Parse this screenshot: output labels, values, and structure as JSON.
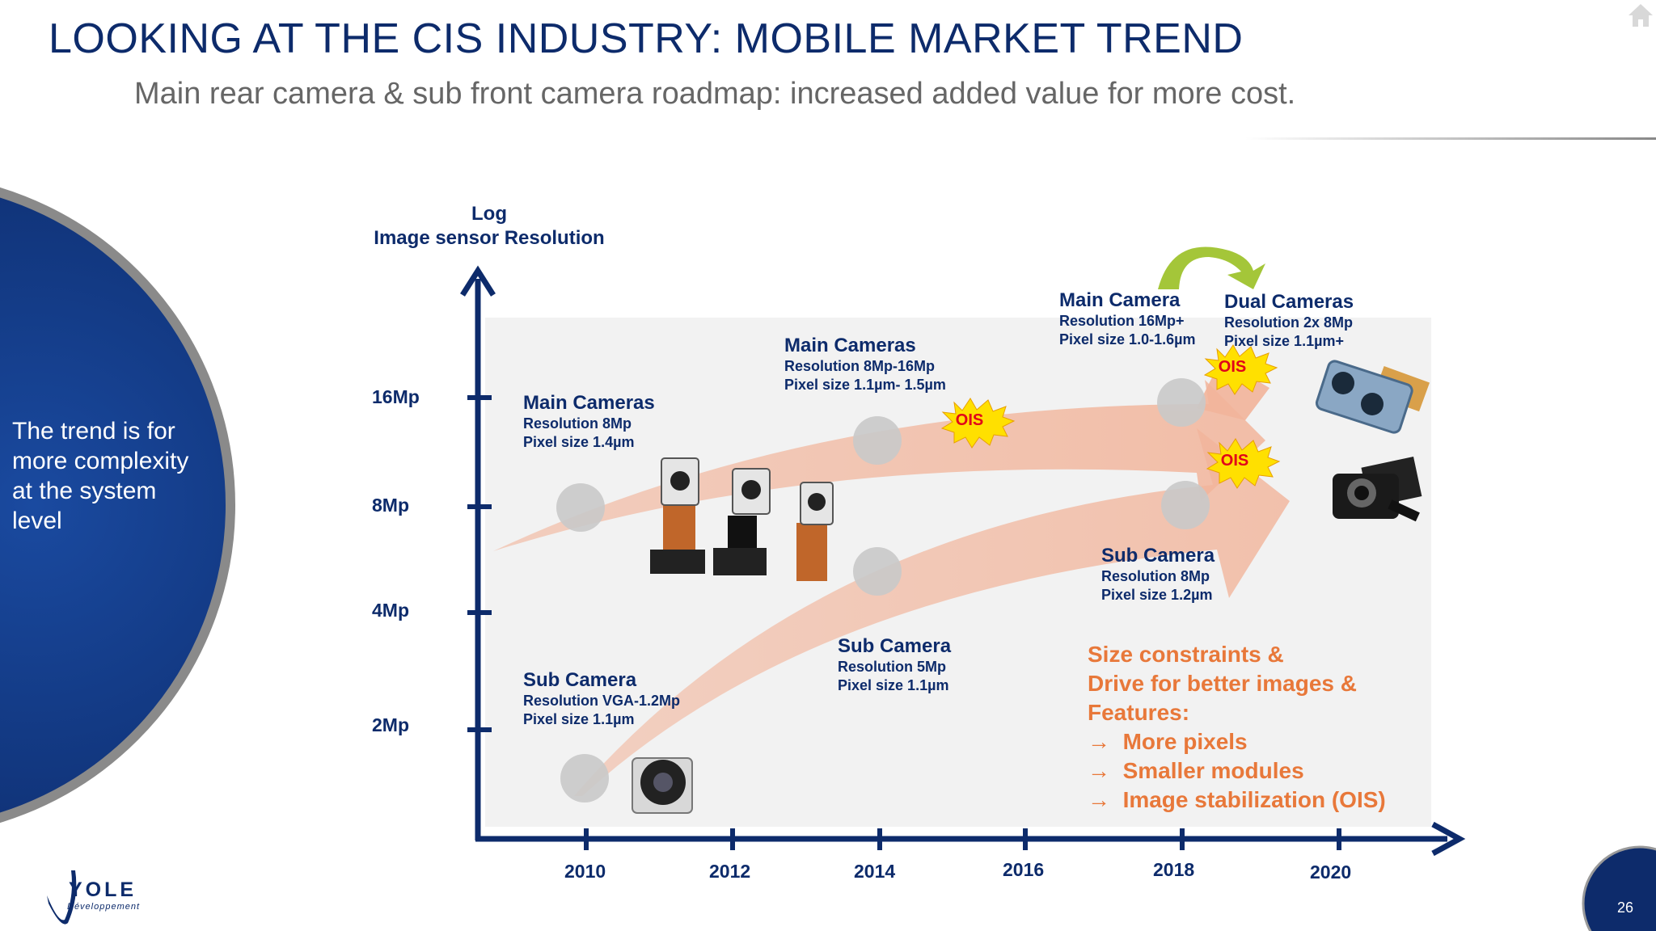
{
  "title": "LOOKING AT THE CIS INDUSTRY: MOBILE MARKET TREND",
  "subtitle": "Main rear camera & sub front camera roadmap: increased added value for more cost.",
  "side_text": "The trend is for more complexity at the system level",
  "page_number": "26",
  "logo": {
    "name": "YOLE",
    "tagline": "Développement"
  },
  "icons": {
    "home": "home-icon"
  },
  "colors": {
    "navy": "#0d2b6b",
    "orange": "#e8783a",
    "arrow_fill": "#f2b49a",
    "ois_fill": "#ffe000",
    "ois_text": "#e1001a",
    "green_arrow": "#a4c639"
  },
  "chart_data": {
    "type": "roadmap",
    "y_axis_title": "Log\nImage sensor Resolution",
    "y_ticks": [
      "16Mp",
      "8Mp",
      "4Mp",
      "2Mp"
    ],
    "x_ticks": [
      "2010",
      "2012",
      "2014",
      "2016",
      "2018",
      "2020"
    ],
    "annotations": [
      {
        "heading": "Main Cameras",
        "line1": "Resolution 8Mp",
        "line2": "Pixel size 1.4µm"
      },
      {
        "heading": "Main Cameras",
        "line1": "Resolution 8Mp-16Mp",
        "line2": "Pixel size 1.1µm- 1.5µm"
      },
      {
        "heading": "Main Camera",
        "line1": "Resolution 16Mp+",
        "line2": "Pixel size 1.0-1.6µm"
      },
      {
        "heading": "Dual Cameras",
        "line1": "Resolution 2x 8Mp",
        "line2": "Pixel size 1.1µm+"
      },
      {
        "heading": "Sub Camera",
        "line1": "Resolution 8Mp",
        "line2": "Pixel size 1.2µm"
      },
      {
        "heading": "Sub Camera",
        "line1": "Resolution 5Mp",
        "line2": "Pixel size 1.1µm"
      },
      {
        "heading": "Sub Camera",
        "line1": "Resolution VGA-1.2Mp",
        "line2": "Pixel size 1.1µm"
      }
    ],
    "ois_label": "OIS",
    "drivers": {
      "lines": [
        "Size constraints &",
        "Drive for better images &",
        "Features:"
      ],
      "bullets": [
        "More pixels",
        "Smaller modules",
        "Image stabilization (OIS)"
      ],
      "arrow": "→"
    }
  }
}
